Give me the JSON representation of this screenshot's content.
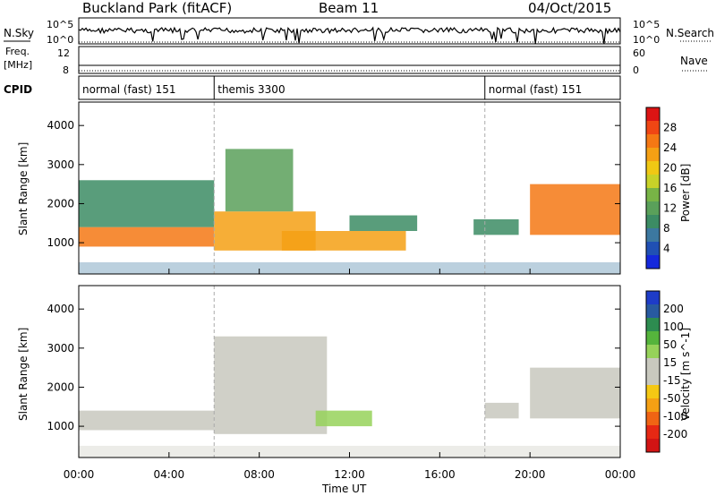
{
  "header": {
    "station": "Buckland Park (fitACF)",
    "beam": "Beam 11",
    "date": "04/Oct/2015"
  },
  "side_labels": {
    "nsky": "N.Sky",
    "freq_line1": "Freq.",
    "freq_line2": "[MHz]",
    "cpid": "CPID",
    "nsearch": "N.Search",
    "nave": "Nave"
  },
  "aux_ticks": {
    "nsky_top": "10^5",
    "nsky_bottom": "10^0",
    "freq_top": "12",
    "freq_bottom": "8",
    "nsearch_top": "10^5",
    "nsearch_bottom": "10^0",
    "nave_top": "60",
    "nave_bottom": "0"
  },
  "cpid_segments": [
    {
      "label": "normal (fast) 151",
      "start_hour": 0,
      "end_hour": 6
    },
    {
      "label": "themis 3300",
      "start_hour": 6,
      "end_hour": 18
    },
    {
      "label": "normal (fast) 151",
      "start_hour": 18,
      "end_hour": 24
    }
  ],
  "xaxis": {
    "label": "Time UT",
    "ticks": [
      "00:00",
      "04:00",
      "08:00",
      "12:00",
      "16:00",
      "20:00",
      "00:00"
    ],
    "range_hours": [
      0,
      24
    ]
  },
  "colors": {
    "power_scale": [
      "#1428dc",
      "#2050b4",
      "#3c78a0",
      "#3c8c64",
      "#5aa05a",
      "#78b446",
      "#c8d228",
      "#f0c814",
      "#f5a014",
      "#f57814",
      "#f04614",
      "#dc1414"
    ],
    "velocity_scale": [
      "#1e3cc8",
      "#285aa0",
      "#2d8c50",
      "#55b43c",
      "#96d25a",
      "#c8c8be",
      "#c8c8be",
      "#f5c814",
      "#f5a014",
      "#f06414",
      "#e62814",
      "#d21414"
    ]
  },
  "chart_data": [
    {
      "type": "heatmap",
      "title": "Power",
      "ylabel": "Slant Range [km]",
      "yticks": [
        "1000",
        "2000",
        "3000",
        "4000"
      ],
      "ylim": [
        200,
        4600
      ],
      "xlim": [
        0,
        24
      ],
      "colorbar_label": "Power [dB]",
      "colorbar_ticks": [
        "4",
        "8",
        "12",
        "16",
        "20",
        "24",
        "28"
      ],
      "colorbar_range": [
        0,
        32
      ],
      "series": [
        {
          "x": [
            0,
            6
          ],
          "y": [
            900,
            1400
          ],
          "value": 26
        },
        {
          "x": [
            0,
            6
          ],
          "y": [
            1400,
            2600
          ],
          "value": 10
        },
        {
          "x": [
            6,
            10.5
          ],
          "y": [
            800,
            1800
          ],
          "value": 22
        },
        {
          "x": [
            6.5,
            9.5
          ],
          "y": [
            1800,
            3400
          ],
          "value": 12
        },
        {
          "x": [
            9,
            14.5
          ],
          "y": [
            800,
            1300
          ],
          "value": 22
        },
        {
          "x": [
            12,
            15
          ],
          "y": [
            1300,
            1700
          ],
          "value": 10
        },
        {
          "x": [
            17.5,
            19.5
          ],
          "y": [
            1200,
            1600
          ],
          "value": 8
        },
        {
          "x": [
            20,
            24
          ],
          "y": [
            1200,
            2500
          ],
          "value": 24
        }
      ]
    },
    {
      "type": "heatmap",
      "title": "Velocity",
      "ylabel": "Slant Range [km]",
      "yticks": [
        "1000",
        "2000",
        "3000",
        "4000"
      ],
      "ylim": [
        200,
        4600
      ],
      "xlim": [
        0,
        24
      ],
      "colorbar_label": "Velocity [m s^-1]",
      "colorbar_ticks": [
        "200",
        "100",
        "50",
        "15",
        "-15",
        "-50",
        "-100",
        "-200"
      ],
      "series": [
        {
          "x": [
            0,
            6
          ],
          "y": [
            900,
            1400
          ],
          "value": 0
        },
        {
          "x": [
            6,
            11
          ],
          "y": [
            800,
            3300
          ],
          "value": 5
        },
        {
          "x": [
            10.5,
            13
          ],
          "y": [
            1000,
            1400
          ],
          "value": 40
        },
        {
          "x": [
            18,
            19.5
          ],
          "y": [
            1200,
            1600
          ],
          "value": 0
        },
        {
          "x": [
            20,
            24
          ],
          "y": [
            1200,
            2500
          ],
          "value": 0
        }
      ]
    }
  ]
}
